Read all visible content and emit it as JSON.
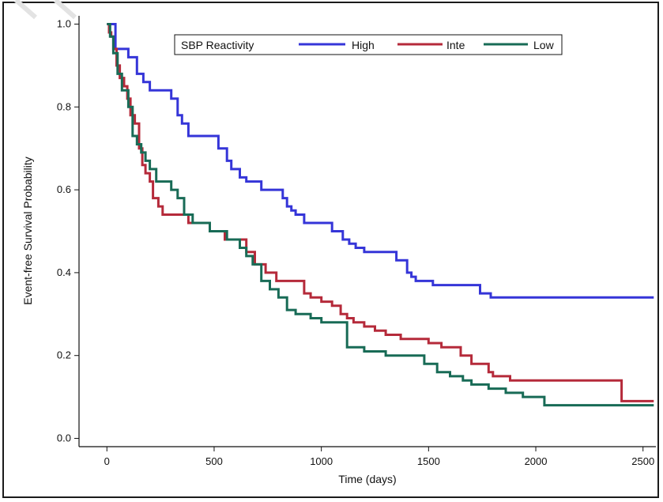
{
  "chart_data": {
    "type": "line",
    "subtype": "kaplan-meier step curves",
    "title": "",
    "xlabel": "Time (days)",
    "ylabel": "Event-free Survival Probability",
    "xlim": [
      -130,
      2560
    ],
    "ylim": [
      -0.02,
      1.02
    ],
    "xticks": [
      0,
      500,
      1000,
      1500,
      2000,
      2500
    ],
    "xtick_labels": [
      "0",
      "500",
      "1000",
      "1500",
      "2000",
      "2500"
    ],
    "yticks": [
      0.0,
      0.2,
      0.4,
      0.6,
      0.8,
      1.0
    ],
    "ytick_labels": [
      "0.0",
      "0.2",
      "0.4",
      "0.6",
      "0.8",
      "1.0"
    ],
    "grid": false,
    "legend": {
      "title": "SBP Reactivity",
      "position": "top-center",
      "entries": [
        "High",
        "Inte",
        "Low"
      ]
    },
    "series": [
      {
        "name": "High",
        "color": "#3535d8",
        "x": [
          0,
          15,
          40,
          60,
          100,
          140,
          170,
          200,
          250,
          300,
          330,
          350,
          380,
          430,
          500,
          520,
          560,
          580,
          620,
          650,
          680,
          720,
          750,
          780,
          820,
          840,
          860,
          880,
          920,
          960,
          1000,
          1050,
          1100,
          1130,
          1160,
          1200,
          1280,
          1300,
          1350,
          1400,
          1420,
          1440,
          1520,
          1560,
          1600,
          1680,
          1700,
          1740,
          1790,
          2000,
          2200,
          2550
        ],
        "y": [
          1.0,
          1.0,
          0.94,
          0.94,
          0.92,
          0.88,
          0.86,
          0.84,
          0.84,
          0.82,
          0.78,
          0.76,
          0.73,
          0.73,
          0.73,
          0.7,
          0.67,
          0.65,
          0.63,
          0.62,
          0.62,
          0.6,
          0.6,
          0.6,
          0.58,
          0.56,
          0.55,
          0.54,
          0.52,
          0.52,
          0.52,
          0.5,
          0.48,
          0.47,
          0.46,
          0.45,
          0.45,
          0.45,
          0.43,
          0.4,
          0.39,
          0.38,
          0.37,
          0.37,
          0.37,
          0.37,
          0.37,
          0.35,
          0.34,
          0.34,
          0.34,
          0.34
        ]
      },
      {
        "name": "Inte",
        "color": "#b52a3a",
        "x": [
          0,
          10,
          20,
          30,
          45,
          60,
          80,
          95,
          110,
          130,
          150,
          165,
          180,
          200,
          215,
          240,
          260,
          300,
          380,
          480,
          550,
          620,
          650,
          690,
          740,
          790,
          830,
          880,
          920,
          950,
          1000,
          1050,
          1090,
          1120,
          1150,
          1200,
          1250,
          1300,
          1370,
          1420,
          1450,
          1500,
          1560,
          1600,
          1650,
          1700,
          1780,
          1800,
          1880,
          2380,
          2400,
          2550
        ],
        "y": [
          1.0,
          0.98,
          0.97,
          0.94,
          0.9,
          0.87,
          0.85,
          0.82,
          0.78,
          0.76,
          0.7,
          0.66,
          0.64,
          0.62,
          0.58,
          0.56,
          0.54,
          0.54,
          0.52,
          0.5,
          0.48,
          0.48,
          0.45,
          0.42,
          0.4,
          0.38,
          0.38,
          0.38,
          0.35,
          0.34,
          0.33,
          0.32,
          0.3,
          0.29,
          0.28,
          0.27,
          0.26,
          0.25,
          0.24,
          0.24,
          0.24,
          0.23,
          0.22,
          0.22,
          0.2,
          0.18,
          0.16,
          0.15,
          0.14,
          0.14,
          0.09,
          0.09
        ]
      },
      {
        "name": "Low",
        "color": "#186b56",
        "x": [
          0,
          15,
          30,
          50,
          70,
          100,
          120,
          140,
          160,
          180,
          200,
          230,
          270,
          300,
          330,
          360,
          400,
          480,
          560,
          600,
          620,
          650,
          680,
          720,
          760,
          800,
          840,
          880,
          950,
          1000,
          1060,
          1090,
          1120,
          1200,
          1300,
          1400,
          1480,
          1540,
          1600,
          1660,
          1700,
          1780,
          1860,
          1940,
          2040,
          2550
        ],
        "y": [
          1.0,
          0.97,
          0.93,
          0.88,
          0.84,
          0.8,
          0.73,
          0.71,
          0.69,
          0.67,
          0.65,
          0.62,
          0.62,
          0.6,
          0.58,
          0.54,
          0.52,
          0.5,
          0.48,
          0.48,
          0.46,
          0.44,
          0.42,
          0.38,
          0.36,
          0.34,
          0.31,
          0.3,
          0.29,
          0.28,
          0.28,
          0.28,
          0.22,
          0.21,
          0.2,
          0.2,
          0.18,
          0.16,
          0.15,
          0.14,
          0.13,
          0.12,
          0.11,
          0.1,
          0.08,
          0.08
        ]
      }
    ]
  }
}
